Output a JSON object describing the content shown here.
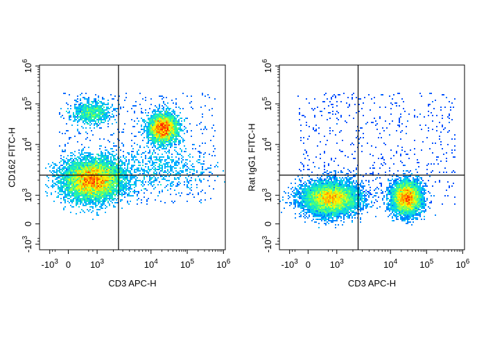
{
  "chart_data": [
    {
      "type": "scatter",
      "subtype": "flow-cytometry-density-dot-plot",
      "xlabel": "CD3 APC-H",
      "ylabel": "CD162 FITC-H",
      "xscale": "biexponential",
      "yscale": "biexponential",
      "x_ticks": [
        {
          "label": "-10",
          "exp": "3"
        },
        {
          "label": "0",
          "exp": ""
        },
        {
          "label": "10",
          "exp": "3"
        },
        {
          "label": "10",
          "exp": "4"
        },
        {
          "label": "10",
          "exp": "5"
        },
        {
          "label": "10",
          "exp": "6"
        }
      ],
      "y_ticks": [
        {
          "label": "-10",
          "exp": "3"
        },
        {
          "label": "0",
          "exp": ""
        },
        {
          "label": "10",
          "exp": "3"
        },
        {
          "label": "10",
          "exp": "4"
        },
        {
          "label": "10",
          "exp": "5"
        },
        {
          "label": "10",
          "exp": "6"
        }
      ],
      "gate": {
        "x": 2500,
        "y": 2500
      },
      "populations": [
        {
          "cx": 500,
          "cy": 2000,
          "sx": 0.16,
          "sy": 0.11,
          "weight": 0.55
        },
        {
          "cx": 22000,
          "cy": 25000,
          "sx": 0.08,
          "sy": 0.08,
          "weight": 0.24
        },
        {
          "cx": 400,
          "cy": 60000,
          "sx": 0.1,
          "sy": 0.06,
          "weight": 0.06
        },
        {
          "cx": 20000,
          "cy": 3500,
          "sx": 0.25,
          "sy": 0.12,
          "weight": 0.04
        }
      ],
      "density_colors": [
        "#0000ff",
        "#00c8ff",
        "#30ff90",
        "#ffff00",
        "#ff8000",
        "#ff0000"
      ]
    },
    {
      "type": "scatter",
      "subtype": "flow-cytometry-density-dot-plot",
      "xlabel": "CD3 APC-H",
      "ylabel": "Rat IgG1 FITC-H",
      "xscale": "biexponential",
      "yscale": "biexponential",
      "x_ticks": [
        {
          "label": "-10",
          "exp": "3"
        },
        {
          "label": "0",
          "exp": ""
        },
        {
          "label": "10",
          "exp": "3"
        },
        {
          "label": "10",
          "exp": "4"
        },
        {
          "label": "10",
          "exp": "5"
        },
        {
          "label": "10",
          "exp": "6"
        }
      ],
      "y_ticks": [
        {
          "label": "-10",
          "exp": "3"
        },
        {
          "label": "0",
          "exp": ""
        },
        {
          "label": "10",
          "exp": "3"
        },
        {
          "label": "10",
          "exp": "4"
        },
        {
          "label": "10",
          "exp": "5"
        },
        {
          "label": "10",
          "exp": "6"
        }
      ],
      "gate": {
        "x": 2500,
        "y": 2500
      },
      "populations": [
        {
          "cx": 350,
          "cy": 600,
          "sx": 0.15,
          "sy": 0.09,
          "weight": 0.55
        },
        {
          "cx": 28000,
          "cy": 650,
          "sx": 0.08,
          "sy": 0.09,
          "weight": 0.4
        }
      ],
      "density_colors": [
        "#0000ff",
        "#00c8ff",
        "#30ff90",
        "#ffff00",
        "#ff8000",
        "#ff0000"
      ]
    }
  ]
}
